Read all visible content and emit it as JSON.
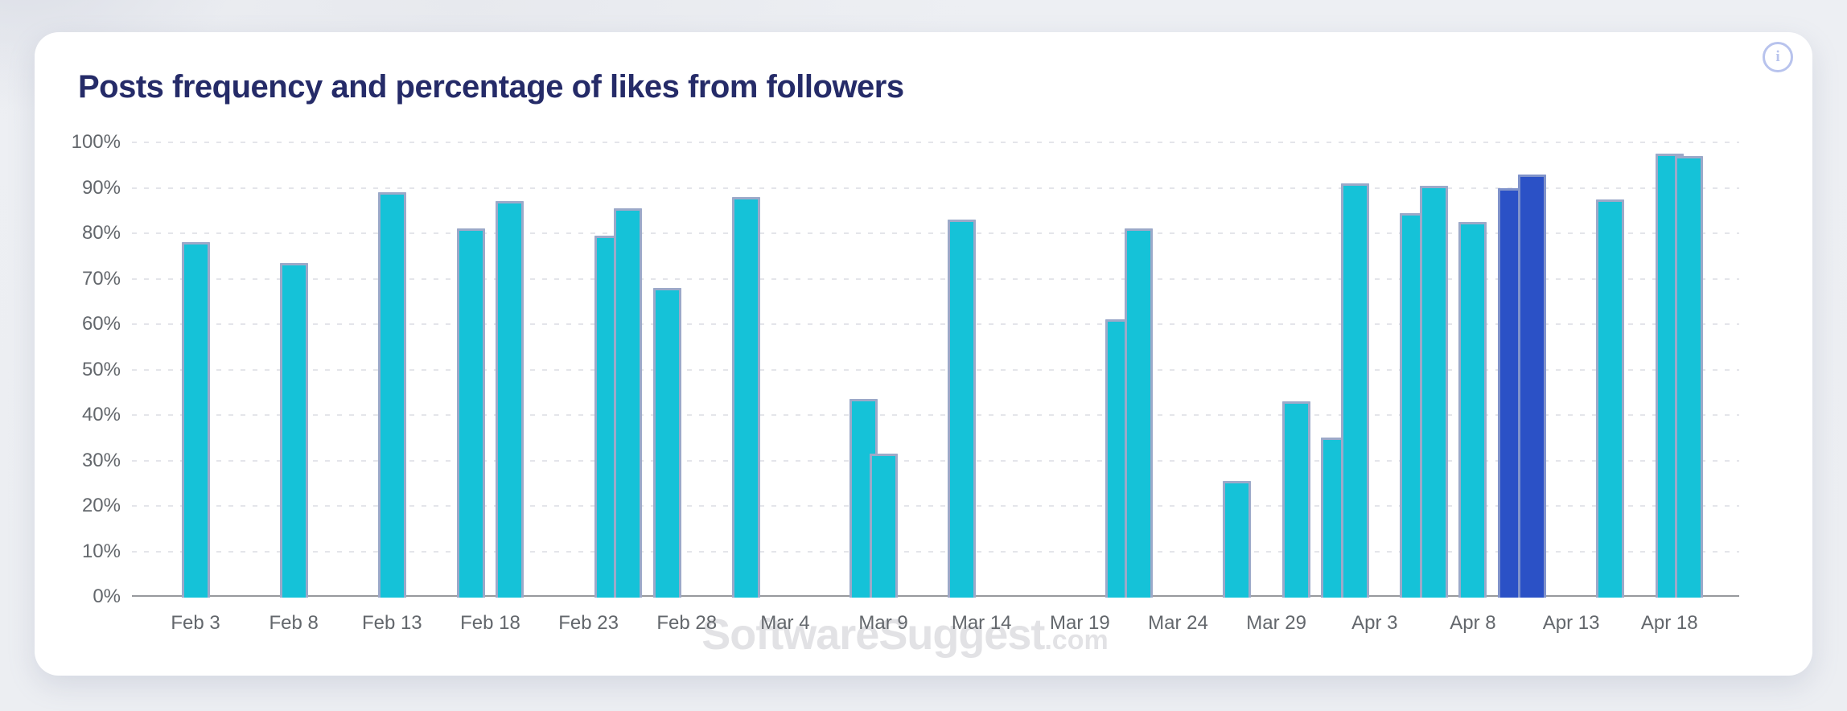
{
  "window": {
    "description": "Analytics dashboard card with bar chart"
  },
  "icons": {
    "info_glyph": "i"
  },
  "watermark": {
    "text": "SoftwareSuggest",
    "suffix": ".com",
    "color": "#e2e2e5"
  },
  "colors": {
    "page_bg": "#edeff3",
    "card_bg": "#ffffff",
    "title": "#252b68",
    "axis_label": "#63676c",
    "gridline": "#e4e5ea",
    "axis_line": "#97999d",
    "bar": "#15c2d8",
    "bar_border": "#9ca9c9",
    "bar_highlight": "#2b51c6",
    "bar_highlight_border": "#8093cb",
    "info_icon": "#b8c3ed"
  },
  "chart_data": {
    "type": "bar",
    "title": "Posts frequency and percentage of likes from followers",
    "xlabel": "",
    "ylabel": "",
    "ylim": [
      0,
      100
    ],
    "grid": "horizontal dashed",
    "legend": "none",
    "y_ticks": [
      {
        "label": "0%",
        "value": 0
      },
      {
        "label": "10%",
        "value": 10
      },
      {
        "label": "20%",
        "value": 20
      },
      {
        "label": "30%",
        "value": 30
      },
      {
        "label": "40%",
        "value": 40
      },
      {
        "label": "50%",
        "value": 50
      },
      {
        "label": "60%",
        "value": 60
      },
      {
        "label": "70%",
        "value": 70
      },
      {
        "label": "80%",
        "value": 80
      },
      {
        "label": "90%",
        "value": 90
      },
      {
        "label": "100%",
        "value": 100
      }
    ],
    "x_ticks": [
      {
        "label": "Feb 3",
        "day": 0
      },
      {
        "label": "Feb 8",
        "day": 5
      },
      {
        "label": "Feb 13",
        "day": 10
      },
      {
        "label": "Feb 18",
        "day": 15
      },
      {
        "label": "Feb 23",
        "day": 20
      },
      {
        "label": "Feb 28",
        "day": 25
      },
      {
        "label": "Mar 4",
        "day": 30
      },
      {
        "label": "Mar 9",
        "day": 35
      },
      {
        "label": "Mar 14",
        "day": 40
      },
      {
        "label": "Mar 19",
        "day": 45
      },
      {
        "label": "Mar 24",
        "day": 50
      },
      {
        "label": "Mar 29",
        "day": 55
      },
      {
        "label": "Apr 3",
        "day": 60
      },
      {
        "label": "Apr 8",
        "day": 65
      },
      {
        "label": "Apr 13",
        "day": 70
      },
      {
        "label": "Apr 18",
        "day": 75
      }
    ],
    "bars": [
      {
        "date": "Feb 3",
        "day": 0,
        "value": 78,
        "highlighted": false
      },
      {
        "date": "Feb 8",
        "day": 5,
        "value": 73.5,
        "highlighted": false
      },
      {
        "date": "Feb 13",
        "day": 10,
        "value": 89,
        "highlighted": false
      },
      {
        "date": "Feb 17",
        "day": 14,
        "value": 81,
        "highlighted": false
      },
      {
        "date": "Feb 19",
        "day": 16,
        "value": 87,
        "highlighted": false
      },
      {
        "date": "Feb 24",
        "day": 21,
        "value": 79.5,
        "highlighted": false
      },
      {
        "date": "Feb 25",
        "day": 22,
        "value": 85.5,
        "highlighted": false
      },
      {
        "date": "Feb 27",
        "day": 24,
        "value": 68,
        "highlighted": false
      },
      {
        "date": "Mar 2",
        "day": 28,
        "value": 88,
        "highlighted": false
      },
      {
        "date": "Mar 8",
        "day": 34,
        "value": 43.5,
        "highlighted": false
      },
      {
        "date": "Mar 9",
        "day": 35,
        "value": 31.5,
        "highlighted": false
      },
      {
        "date": "Mar 13",
        "day": 39,
        "value": 83,
        "highlighted": false
      },
      {
        "date": "Mar 21",
        "day": 47,
        "value": 61,
        "highlighted": false
      },
      {
        "date": "Mar 22",
        "day": 48,
        "value": 81,
        "highlighted": false
      },
      {
        "date": "Mar 27",
        "day": 53,
        "value": 25.5,
        "highlighted": false
      },
      {
        "date": "Mar 30",
        "day": 56,
        "value": 43,
        "highlighted": false
      },
      {
        "date": "Apr 1",
        "day": 58,
        "value": 35,
        "highlighted": false
      },
      {
        "date": "Apr 2",
        "day": 59,
        "value": 91,
        "highlighted": false
      },
      {
        "date": "Apr 5",
        "day": 62,
        "value": 84.5,
        "highlighted": false
      },
      {
        "date": "Apr 6",
        "day": 63,
        "value": 90.5,
        "highlighted": false
      },
      {
        "date": "Apr 8",
        "day": 65,
        "value": 82.5,
        "highlighted": false
      },
      {
        "date": "Apr 10",
        "day": 67,
        "value": 90,
        "highlighted": true
      },
      {
        "date": "Apr 11",
        "day": 68,
        "value": 93,
        "highlighted": true
      },
      {
        "date": "Apr 15",
        "day": 72,
        "value": 87.5,
        "highlighted": false
      },
      {
        "date": "Apr 18",
        "day": 75,
        "value": 97.5,
        "highlighted": false
      },
      {
        "date": "Apr 19",
        "day": 76,
        "value": 97,
        "highlighted": false
      }
    ]
  }
}
